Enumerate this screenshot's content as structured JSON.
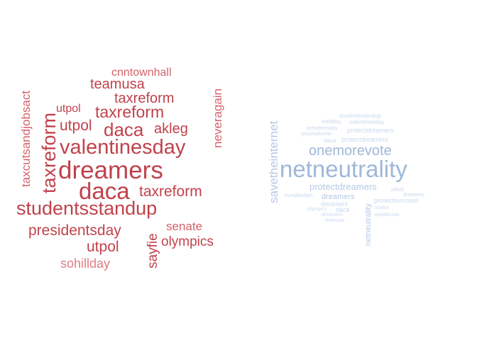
{
  "colors": {
    "red": "#c0424c",
    "red_mid": "#d5616a",
    "red_light": "#df7c83",
    "blue_strong": "#9fb7d8",
    "blue": "#b6c9e4",
    "blue_light": "#c9d8ee"
  },
  "left_cloud": {
    "words": [
      "dreamers",
      "daca",
      "studentsstandup",
      "valentinesday",
      "taxreform",
      "taxreform",
      "taxreform",
      "taxreform",
      "daca",
      "teamusa",
      "utpol",
      "utpol",
      "utpol",
      "akleg",
      "presidentsday",
      "cnntownhall",
      "taxcutsandjobsact",
      "neveragain",
      "sayfie",
      "senate",
      "olympics",
      "sohillday"
    ]
  },
  "right_cloud": {
    "words": [
      "netneutrality",
      "onemorevote",
      "savetheinternet",
      "protectdreamers",
      "netneutrality",
      "studentsstandup",
      "sohillday",
      "valentinesday",
      "presidentsday",
      "janusvafscme",
      "protectdreamers",
      "daca",
      "protectdreamers",
      "tvl620",
      "trumpbudget",
      "dreamers",
      "dreamers",
      "protectourcoast",
      "dreamers",
      "scotus",
      "olympics",
      "daca",
      "opioidcrisis",
      "dreamers",
      "teamusa"
    ]
  }
}
